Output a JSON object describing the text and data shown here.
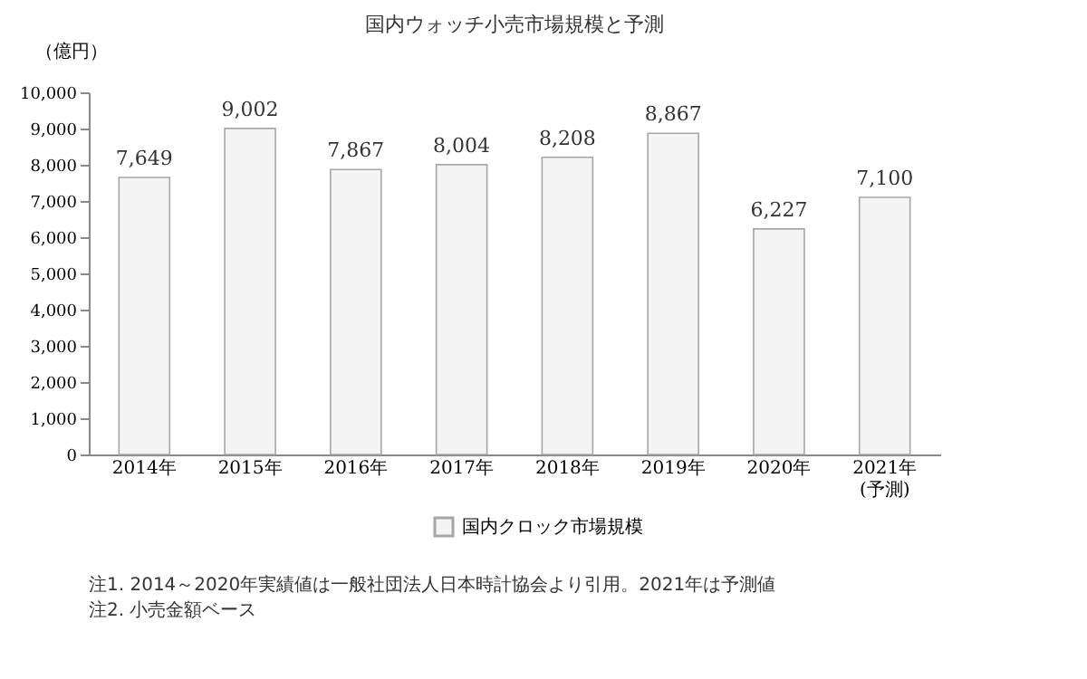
{
  "chart_data": {
    "type": "bar",
    "title": "国内ウォッチ小売市場規模と予測",
    "ylabel": "（億円）",
    "categories": [
      "2014年",
      "2015年",
      "2016年",
      "2017年",
      "2018年",
      "2019年",
      "2020年",
      "2021年\n(予測)"
    ],
    "series": [
      {
        "name": "国内クロック市場規模",
        "color": "#f4f4f4",
        "values": [
          7649,
          9002,
          7867,
          8004,
          8208,
          8867,
          6227,
          7100
        ]
      }
    ],
    "ylim": [
      0,
      10000
    ],
    "yticks": [
      {
        "value": 0,
        "label": "0"
      },
      {
        "value": 1000,
        "label": "1,000"
      },
      {
        "value": 2000,
        "label": "2,000"
      },
      {
        "value": 3000,
        "label": "3,000"
      },
      {
        "value": 4000,
        "label": "4,000"
      },
      {
        "value": 5000,
        "label": "5,000"
      },
      {
        "value": 6000,
        "label": "6,000"
      },
      {
        "value": 7000,
        "label": "7,000"
      },
      {
        "value": 8000,
        "label": "8,000"
      },
      {
        "value": 9000,
        "label": "9,000"
      },
      {
        "value": 10000,
        "label": "10,000"
      }
    ],
    "value_labels": [
      "7,649",
      "9,002",
      "7,867",
      "8,004",
      "8,208",
      "8,867",
      "6,227",
      "7,100"
    ],
    "legend": "bottom",
    "grid": false,
    "annotations": [
      "注1.  2014～2020年実績値は一般社団法人日本時計協会より引用。2021年は予測値",
      "注2.  小売金額ベース"
    ]
  }
}
